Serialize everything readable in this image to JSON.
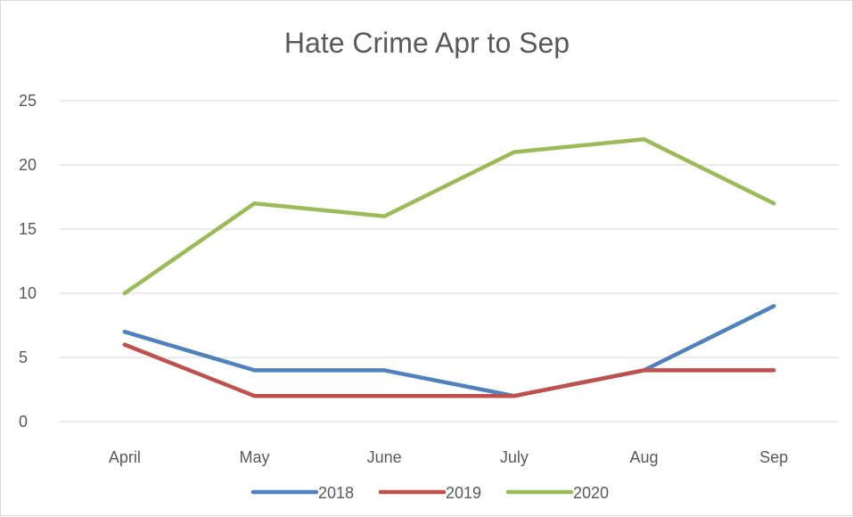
{
  "chart_data": {
    "type": "line",
    "title": "Hate Crime Apr to Sep",
    "xlabel": "",
    "ylabel": "",
    "categories": [
      "April",
      "May",
      "June",
      "July",
      "Aug",
      "Sep"
    ],
    "ylim": [
      0,
      25
    ],
    "yticks": [
      "0",
      "5",
      "10",
      "15",
      "20",
      "25"
    ],
    "grid": true,
    "legend_position": "bottom",
    "series": [
      {
        "name": "2018",
        "color": "#4f81bd",
        "values": [
          7,
          4,
          4,
          2,
          4,
          9
        ]
      },
      {
        "name": "2019",
        "color": "#c0504d",
        "values": [
          6,
          2,
          2,
          2,
          4,
          4
        ]
      },
      {
        "name": "2020",
        "color": "#9bbb59",
        "values": [
          10,
          17,
          16,
          21,
          22,
          17
        ]
      }
    ]
  }
}
